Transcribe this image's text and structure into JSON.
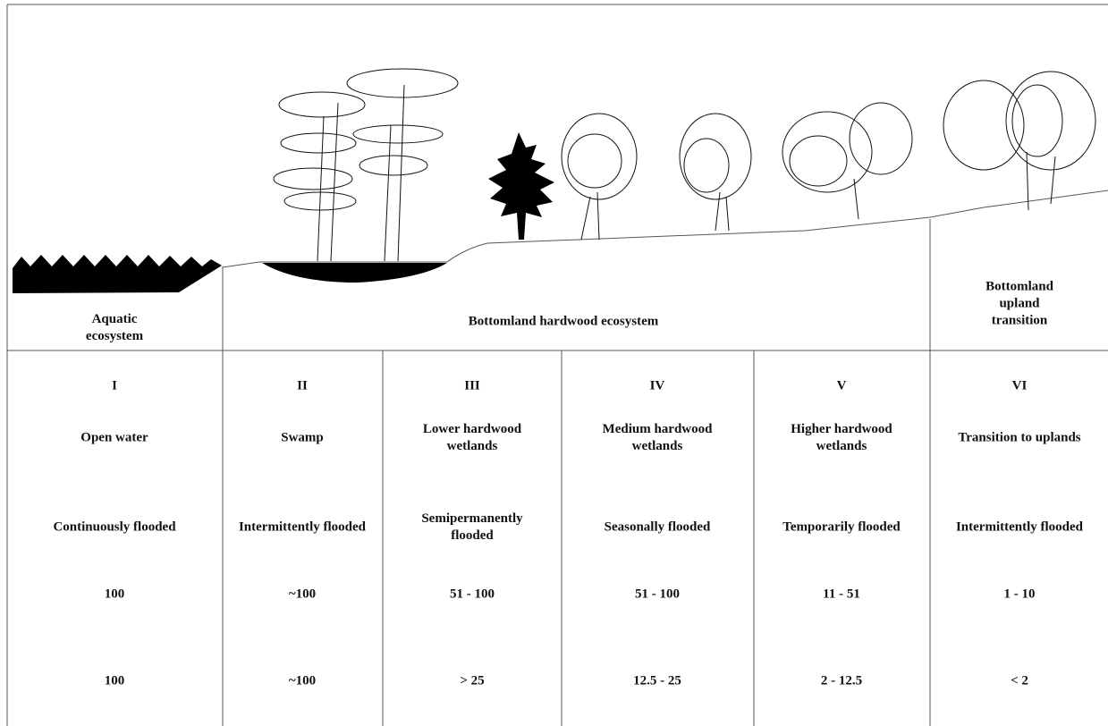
{
  "ecosystems": [
    "Aquatic ecosystem",
    "Bottomland hardwood ecosystem",
    "Bottomland upland transition"
  ],
  "zones": [
    {
      "numeral": "I",
      "name": "Open water",
      "flooding": "Continuously flooded",
      "frequency": "100",
      "duration": "100"
    },
    {
      "numeral": "II",
      "name": "Swamp",
      "flooding": "Intermittently flooded",
      "frequency": "~100",
      "duration": "~100"
    },
    {
      "numeral": "III",
      "name": "Lower hardwood wetlands",
      "flooding": "Semipermanently flooded",
      "frequency": "51 - 100",
      "duration": "> 25"
    },
    {
      "numeral": "IV",
      "name": "Medium hardwood wetlands",
      "flooding": "Seasonally flooded",
      "frequency": "51 - 100",
      "duration": "12.5 - 25"
    },
    {
      "numeral": "V",
      "name": "Higher hardwood wetlands",
      "flooding": "Temporarily flooded",
      "frequency": "11 - 51",
      "duration": "2 - 12.5"
    },
    {
      "numeral": "VI",
      "name": "Transition to uplands",
      "flooding": "Intermittently flooded",
      "frequency": "1 - 10",
      "duration": "< 2"
    }
  ]
}
